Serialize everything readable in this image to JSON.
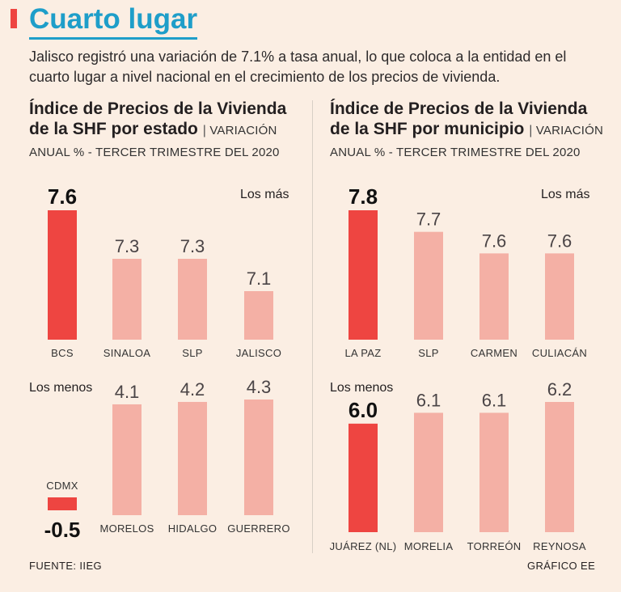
{
  "header": {
    "title": "Cuarto lugar",
    "subtitle": "Jalisco registró una variación de 7.1% a tasa anual, lo que coloca a la entidad en el cuarto lugar a nivel nacional en el crecimiento de los precios de vivienda."
  },
  "left_panel": {
    "title": "Índice de Precios de la Vivienda de la SHF por estado",
    "subtitle": "VARIACIÓN ANUAL % - TERCER TRIMESTRE DEL 2020"
  },
  "right_panel": {
    "title": "Índice de Precios de la Vivienda de la SHF por municipio",
    "subtitle": "VARIACIÓN ANUAL % - TERCER TRIMESTRE DEL 2020"
  },
  "footer": {
    "source": "FUENTE: IIEG",
    "credit": "GRÁFICO EE"
  },
  "colors": {
    "highlight": "#ee4541",
    "bar": "#f4b0a5",
    "title": "#1e9ec9",
    "background": "#fbeee3"
  },
  "chart_data": [
    {
      "type": "bar",
      "title": "Los más",
      "panel": "estado",
      "categories": [
        "BCS",
        "SINALOA",
        "SLP",
        "JALISCO"
      ],
      "values": [
        7.6,
        7.3,
        7.3,
        7.1
      ],
      "value_labels": [
        "7.6",
        "7.3",
        "7.3",
        "7.1"
      ],
      "highlight": [
        true,
        false,
        false,
        false
      ],
      "ylim": [
        6.8,
        7.6
      ]
    },
    {
      "type": "bar",
      "title": "Los menos",
      "panel": "estado",
      "categories": [
        "CDMX",
        "MORELOS",
        "HIDALGO",
        "GUERRERO"
      ],
      "values": [
        -0.5,
        4.1,
        4.2,
        4.3
      ],
      "value_labels": [
        "-0.5",
        "4.1",
        "4.2",
        "4.3"
      ],
      "highlight": [
        true,
        false,
        false,
        false
      ],
      "ylim": [
        -0.5,
        4.3
      ]
    },
    {
      "type": "bar",
      "title": "Los más",
      "panel": "municipio",
      "categories": [
        "LA PAZ",
        "SLP",
        "CARMEN",
        "CULIACÁN"
      ],
      "values": [
        7.8,
        7.7,
        7.6,
        7.6
      ],
      "value_labels": [
        "7.8",
        "7.7",
        "7.6",
        "7.6"
      ],
      "highlight": [
        true,
        false,
        false,
        false
      ],
      "ylim": [
        7.2,
        7.8
      ]
    },
    {
      "type": "bar",
      "title": "Los menos",
      "panel": "municipio",
      "categories": [
        "JUÁREZ (NL)",
        "MORELIA",
        "TORREÓN",
        "REYNOSA"
      ],
      "values": [
        6.0,
        6.1,
        6.1,
        6.2
      ],
      "value_labels": [
        "6.0",
        "6.1",
        "6.1",
        "6.2"
      ],
      "highlight": [
        true,
        false,
        false,
        false
      ],
      "ylim": [
        5.0,
        6.2
      ]
    }
  ]
}
